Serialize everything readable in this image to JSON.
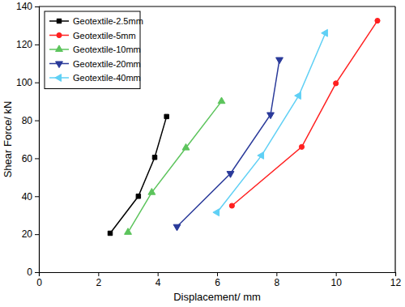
{
  "chart_data": {
    "type": "line",
    "x_label": "Displacement/ mm",
    "y_label": "Shear Force/ kN",
    "xlim": [
      0,
      12
    ],
    "xticks": [
      0,
      2,
      4,
      6,
      8,
      10,
      12
    ],
    "ylim": [
      0,
      140
    ],
    "yticks": [
      0,
      20,
      40,
      60,
      80,
      100,
      120,
      140
    ],
    "grid": false,
    "legend": "upper-left",
    "series": [
      {
        "name": "Geotextile-2.5mm",
        "color": "#000000",
        "marker": "square",
        "x": [
          2.4,
          3.35,
          3.9,
          4.3
        ],
        "values": [
          20.5,
          40,
          60.5,
          82
        ]
      },
      {
        "name": "Geotextile-5mm",
        "color": "#ff2020",
        "marker": "circle",
        "x": [
          6.5,
          8.85,
          10,
          11.4
        ],
        "values": [
          35,
          66,
          99.5,
          132.5
        ]
      },
      {
        "name": "Geotextile-10mm",
        "color": "#5cc45c",
        "marker": "triangle",
        "x": [
          3,
          3.8,
          4.95,
          6.15
        ],
        "values": [
          21,
          42,
          65.5,
          90
        ]
      },
      {
        "name": "Geotextile-20mm",
        "color": "#2a3a9a",
        "marker": "triangle-down",
        "x": [
          4.65,
          6.45,
          7.8,
          8.1
        ],
        "values": [
          24,
          52,
          83,
          112
        ]
      },
      {
        "name": "Geotextile-40mm",
        "color": "#5fd0f5",
        "marker": "triangle-left",
        "x": [
          6,
          7.5,
          8.75,
          9.65
        ],
        "values": [
          31.5,
          61.5,
          93,
          126
        ]
      }
    ]
  }
}
